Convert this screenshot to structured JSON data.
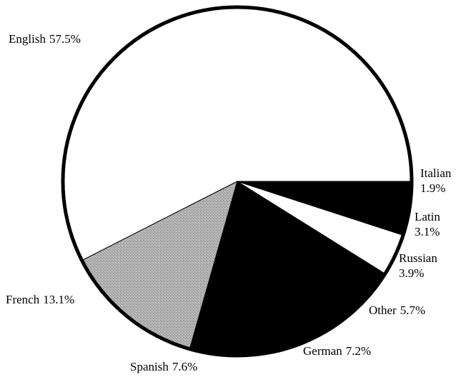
{
  "chart_data": {
    "type": "pie",
    "categories": [
      "English",
      "French",
      "Spanish",
      "German",
      "Other",
      "Russian",
      "Latin",
      "Italian"
    ],
    "values": [
      57.5,
      13.1,
      7.6,
      7.2,
      5.7,
      3.9,
      3.1,
      1.9
    ],
    "value_labels": [
      "57.5%",
      "13.1%",
      "7.6%",
      "7.2%",
      "5.7%",
      "3.9%",
      "3.1%",
      "1.9%"
    ],
    "colors": [
      "#ffffff",
      "#a8a8a8",
      "#000000",
      "#000000",
      "#000000",
      "#ffffff",
      "#000000",
      "#000000"
    ]
  }
}
